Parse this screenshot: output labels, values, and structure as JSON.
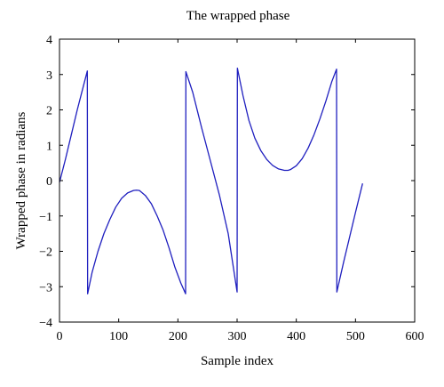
{
  "chart_data": {
    "type": "line",
    "title": "The wrapped phase",
    "xlabel": "Sample index",
    "ylabel": "Wrapped phase in radians",
    "xlim": [
      0,
      600
    ],
    "ylim": [
      -4,
      4
    ],
    "xticks": [
      0,
      100,
      200,
      300,
      400,
      500,
      600
    ],
    "yticks": [
      -4,
      -3,
      -2,
      -1,
      0,
      1,
      2,
      3,
      4
    ],
    "xtick_labels": [
      "0",
      "100",
      "200",
      "300",
      "400",
      "500",
      "600"
    ],
    "ytick_labels": [
      "−4",
      "−3",
      "−2",
      "−1",
      "0",
      "1",
      "2",
      "3",
      "4"
    ],
    "grid": false,
    "line_color": "#1f1fbf",
    "series": [
      {
        "x": [
          0,
          10,
          20,
          30,
          40,
          47,
          47.5,
          55,
          65,
          75,
          85,
          95,
          105,
          115,
          125,
          130,
          135,
          145,
          155,
          165,
          175,
          185,
          195,
          205,
          213,
          213.5,
          225,
          240,
          255,
          270,
          285,
          300,
          300.5,
          310,
          320,
          330,
          340,
          350,
          360,
          370,
          380,
          386,
          390,
          400,
          410,
          420,
          430,
          440,
          450,
          460,
          468,
          468.5,
          480,
          490,
          500,
          512
        ],
        "y": [
          -0.05,
          0.6,
          1.3,
          2.0,
          2.65,
          3.1,
          -3.2,
          -2.6,
          -2.0,
          -1.5,
          -1.1,
          -0.75,
          -0.5,
          -0.35,
          -0.28,
          -0.27,
          -0.28,
          -0.42,
          -0.65,
          -1.0,
          -1.4,
          -1.9,
          -2.45,
          -2.9,
          -3.2,
          3.08,
          2.5,
          1.5,
          0.55,
          -0.4,
          -1.5,
          -3.15,
          3.18,
          2.4,
          1.7,
          1.2,
          0.85,
          0.6,
          0.43,
          0.33,
          0.29,
          0.29,
          0.31,
          0.42,
          0.62,
          0.92,
          1.3,
          1.75,
          2.25,
          2.8,
          3.15,
          -3.15,
          -2.3,
          -1.6,
          -0.9,
          -0.08
        ]
      }
    ]
  }
}
